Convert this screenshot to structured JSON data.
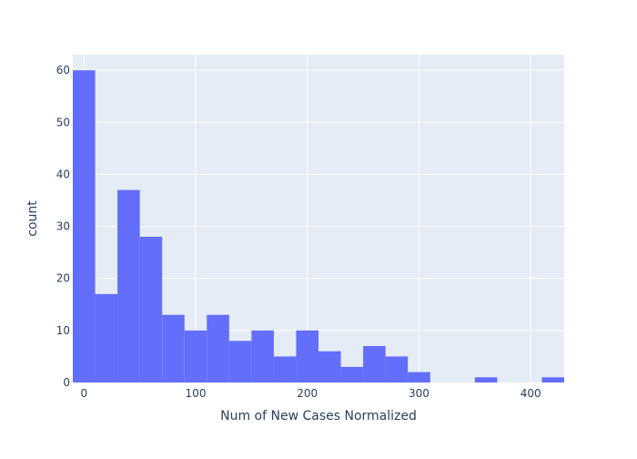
{
  "chart_data": {
    "type": "bar",
    "title": "",
    "xlabel": "Num of New Cases Normalized",
    "ylabel": "count",
    "xlim": [
      -10,
      430
    ],
    "ylim": [
      0,
      63
    ],
    "bin_width": 20,
    "bins": [
      {
        "x0": -10,
        "x1": 10,
        "count": 60
      },
      {
        "x0": 10,
        "x1": 30,
        "count": 17
      },
      {
        "x0": 30,
        "x1": 50,
        "count": 37
      },
      {
        "x0": 50,
        "x1": 70,
        "count": 28
      },
      {
        "x0": 70,
        "x1": 90,
        "count": 13
      },
      {
        "x0": 90,
        "x1": 110,
        "count": 10
      },
      {
        "x0": 110,
        "x1": 130,
        "count": 13
      },
      {
        "x0": 130,
        "x1": 150,
        "count": 8
      },
      {
        "x0": 150,
        "x1": 170,
        "count": 10
      },
      {
        "x0": 170,
        "x1": 190,
        "count": 5
      },
      {
        "x0": 190,
        "x1": 210,
        "count": 10
      },
      {
        "x0": 210,
        "x1": 230,
        "count": 6
      },
      {
        "x0": 230,
        "x1": 250,
        "count": 3
      },
      {
        "x0": 250,
        "x1": 270,
        "count": 7
      },
      {
        "x0": 270,
        "x1": 290,
        "count": 5
      },
      {
        "x0": 290,
        "x1": 310,
        "count": 2
      },
      {
        "x0": 350,
        "x1": 370,
        "count": 1
      },
      {
        "x0": 410,
        "x1": 430,
        "count": 1
      }
    ],
    "xticks": [
      0,
      100,
      200,
      300,
      400
    ],
    "yticks": [
      0,
      10,
      20,
      30,
      40,
      50,
      60
    ],
    "grid": true,
    "colors": {
      "bar": "#636efa",
      "plot_bg": "#e5ecf6",
      "grid": "#ffffff",
      "text": "#2a3f5f"
    }
  }
}
